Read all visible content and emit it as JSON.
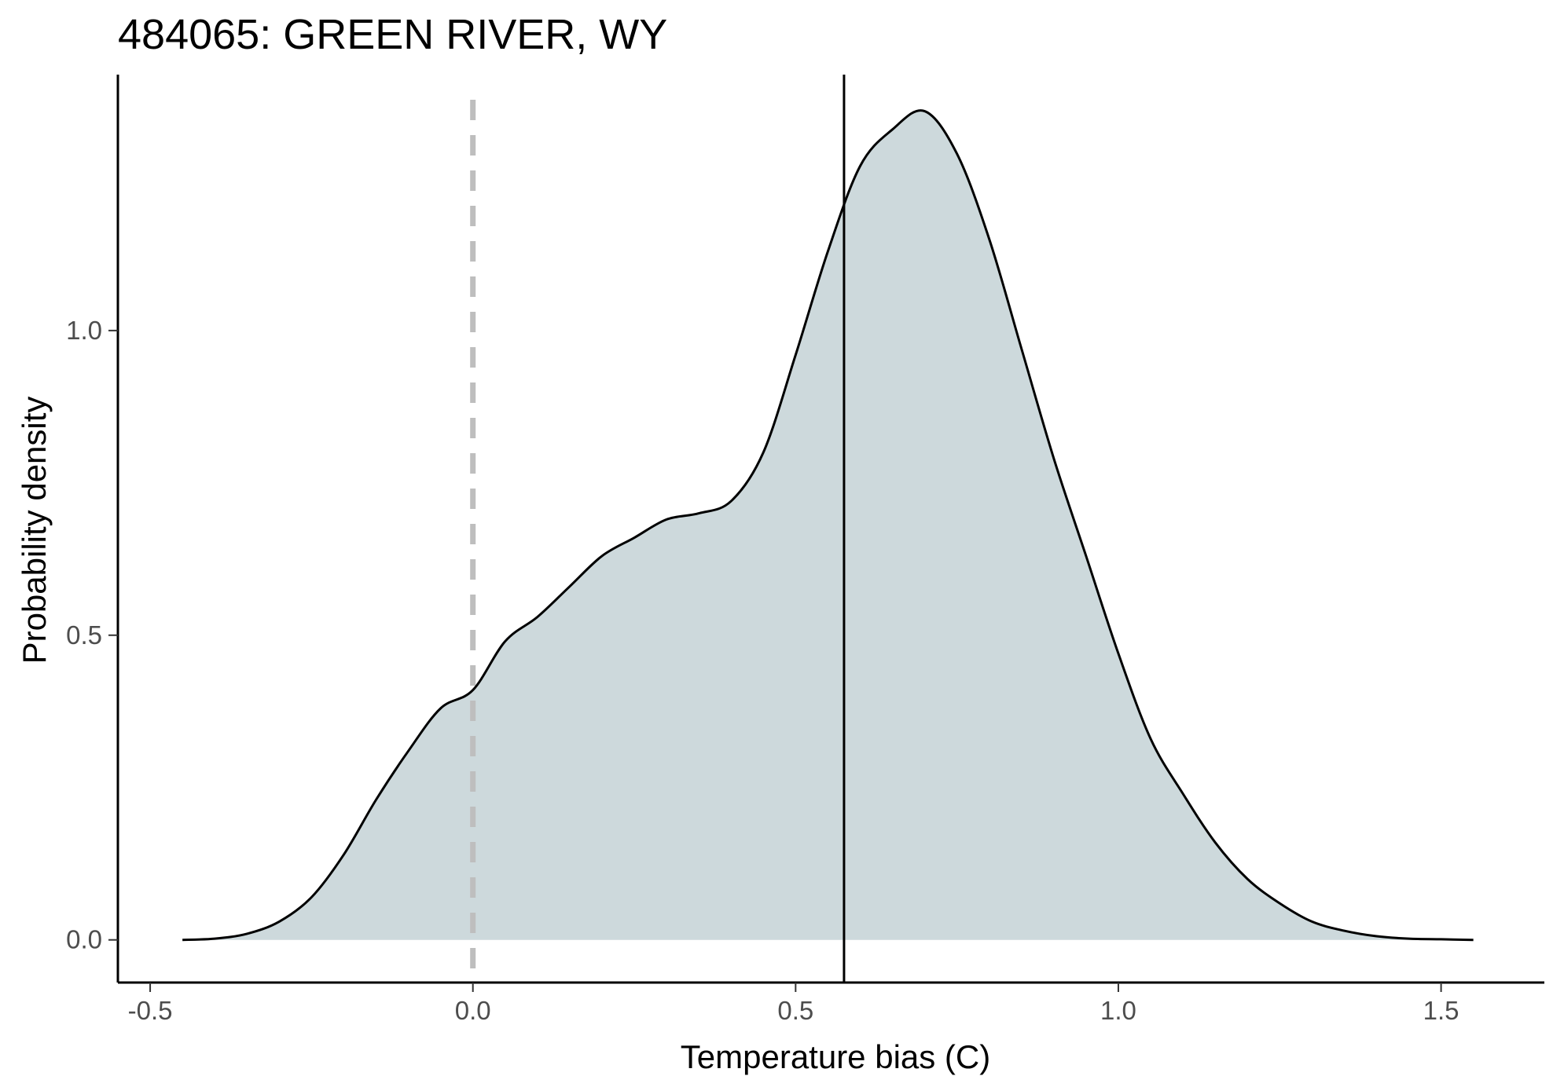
{
  "chart_data": {
    "type": "area",
    "title": "484065: GREEN RIVER, WY",
    "xlabel": "Temperature bias (C)",
    "ylabel": "Probability density",
    "xlim": [
      -0.55,
      1.66
    ],
    "ylim": [
      -0.07,
      1.42
    ],
    "x_ticks": [
      -0.5,
      0.0,
      0.5,
      1.0,
      1.5
    ],
    "x_tick_labels": [
      "-0.5",
      "0.0",
      "0.5",
      "1.0",
      "1.5"
    ],
    "y_ticks": [
      0.0,
      0.5,
      1.0
    ],
    "y_tick_labels": [
      "0.0",
      "0.5",
      "1.0"
    ],
    "grid": false,
    "legend": "none",
    "reference_lines": [
      {
        "x": 0.0,
        "style": "dashed",
        "color": "#bebebe"
      },
      {
        "x": 0.575,
        "style": "solid",
        "color": "#000000"
      }
    ],
    "fill_color": "#cdd9dc",
    "line_color": "#000000",
    "density": {
      "x": [
        -0.45,
        -0.4,
        -0.35,
        -0.3,
        -0.25,
        -0.2,
        -0.15,
        -0.1,
        -0.05,
        0.0,
        0.05,
        0.1,
        0.15,
        0.2,
        0.25,
        0.3,
        0.35,
        0.4,
        0.45,
        0.5,
        0.55,
        0.6,
        0.65,
        0.7,
        0.75,
        0.8,
        0.85,
        0.9,
        0.95,
        1.0,
        1.05,
        1.1,
        1.15,
        1.2,
        1.25,
        1.3,
        1.35,
        1.4,
        1.45,
        1.5,
        1.55
      ],
      "y": [
        0.0,
        0.002,
        0.01,
        0.03,
        0.07,
        0.14,
        0.23,
        0.31,
        0.38,
        0.41,
        0.49,
        0.53,
        0.58,
        0.63,
        0.66,
        0.69,
        0.7,
        0.72,
        0.8,
        0.96,
        1.13,
        1.27,
        1.33,
        1.36,
        1.29,
        1.15,
        0.97,
        0.79,
        0.63,
        0.47,
        0.33,
        0.24,
        0.16,
        0.1,
        0.06,
        0.03,
        0.015,
        0.006,
        0.002,
        0.001,
        0.0
      ]
    }
  }
}
